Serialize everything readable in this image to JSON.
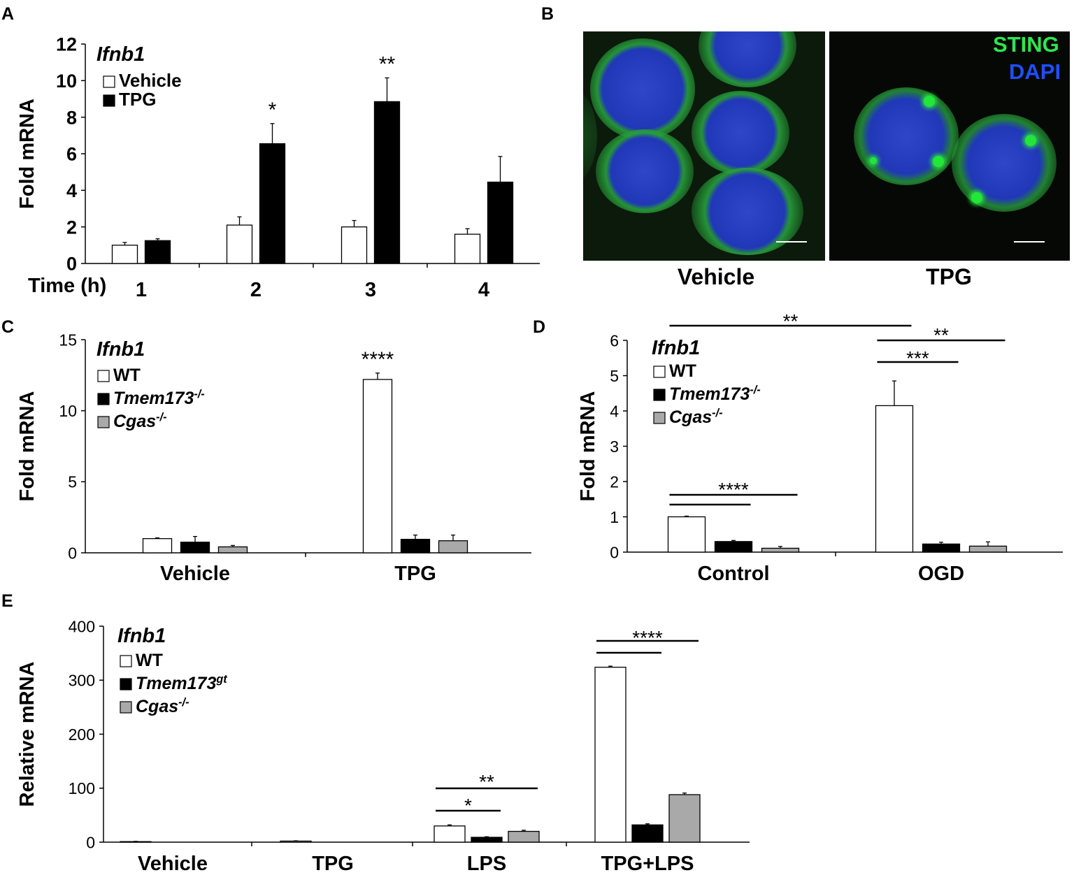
{
  "panels": {
    "A": "A",
    "B": "B",
    "C": "C",
    "D": "D",
    "E": "E"
  },
  "colors": {
    "wt": "#ffffff",
    "tpg": "#000000",
    "ko": "#000000",
    "cgas": "#a9a9a9",
    "sting": "#2ee64a",
    "dapi": "#1f4fff"
  },
  "chart_data": [
    {
      "panel": "A",
      "type": "bar",
      "title": "Ifnb1",
      "xlabel": "Time (h)",
      "ylabel": "Fold mRNA",
      "ylim": [
        0,
        12
      ],
      "yticks": [
        "0",
        "2",
        "4",
        "6",
        "8",
        "10",
        "12"
      ],
      "categories": [
        "1",
        "2",
        "3",
        "4"
      ],
      "series": [
        {
          "name": "Vehicle",
          "values": [
            1.0,
            2.1,
            2.0,
            1.6
          ],
          "errors": [
            0.15,
            0.45,
            0.35,
            0.3
          ],
          "color": "#ffffff"
        },
        {
          "name": "TPG",
          "values": [
            1.25,
            6.55,
            8.85,
            4.45
          ],
          "errors": [
            0.1,
            1.1,
            1.3,
            1.4
          ],
          "color": "#000000"
        }
      ],
      "annotations": [
        {
          "category": "2",
          "text": "*"
        },
        {
          "category": "3",
          "text": "**"
        }
      ]
    },
    {
      "panel": "C",
      "type": "bar",
      "title": "Ifnb1",
      "ylabel": "Fold mRNA",
      "ylim": [
        0,
        15
      ],
      "yticks": [
        "0",
        "5",
        "10",
        "15"
      ],
      "categories": [
        "Vehicle",
        "TPG"
      ],
      "series": [
        {
          "name": "WT",
          "values": [
            1.0,
            12.2
          ],
          "errors": [
            0.05,
            0.45
          ],
          "color": "#ffffff"
        },
        {
          "name": "Tmem173",
          "sup": "-/-",
          "values": [
            0.75,
            0.95
          ],
          "errors": [
            0.4,
            0.3
          ],
          "color": "#000000"
        },
        {
          "name": "Cgas",
          "sup": "-/-",
          "values": [
            0.42,
            0.85
          ],
          "errors": [
            0.1,
            0.4
          ],
          "color": "#a9a9a9"
        }
      ],
      "annotations": [
        {
          "category": "TPG",
          "text": "****"
        }
      ]
    },
    {
      "panel": "D",
      "type": "bar",
      "title": "Ifnb1",
      "ylabel": "Fold mRNA",
      "ylim": [
        0,
        6
      ],
      "yticks": [
        "0",
        "1",
        "2",
        "3",
        "4",
        "5",
        "6"
      ],
      "categories": [
        "Control",
        "OGD"
      ],
      "series": [
        {
          "name": "WT",
          "values": [
            1.0,
            4.15
          ],
          "errors": [
            0.02,
            0.7
          ],
          "color": "#ffffff"
        },
        {
          "name": "Tmem173",
          "sup": "-/-",
          "values": [
            0.3,
            0.23
          ],
          "errors": [
            0.03,
            0.05
          ],
          "color": "#000000"
        },
        {
          "name": "Cgas",
          "sup": "-/-",
          "values": [
            0.11,
            0.17
          ],
          "errors": [
            0.05,
            0.12
          ],
          "color": "#a9a9a9"
        }
      ],
      "annotations": [
        {
          "text": "****",
          "from": "Control WT",
          "to": "Control Cgas"
        },
        {
          "text": "***",
          "from": "OGD WT",
          "to": "OGD Tmem173"
        },
        {
          "text": "**",
          "from": "OGD WT",
          "to": "OGD Cgas"
        },
        {
          "text": "**",
          "from": "Control WT",
          "to": "OGD WT"
        }
      ]
    },
    {
      "panel": "E",
      "type": "bar",
      "title": "Ifnb1",
      "ylabel": "Relative mRNA",
      "ylim": [
        0,
        400
      ],
      "yticks": [
        "0",
        "100",
        "200",
        "300",
        "400"
      ],
      "categories": [
        "Vehicle",
        "TPG",
        "LPS",
        "TPG+LPS"
      ],
      "series": [
        {
          "name": "WT",
          "values": [
            1,
            2,
            30,
            324
          ],
          "errors": [
            0.5,
            0.5,
            2,
            2
          ],
          "color": "#ffffff"
        },
        {
          "name": "Tmem173",
          "sup": "gt",
          "values": [
            0,
            0,
            9,
            32
          ],
          "errors": [
            0,
            0,
            1,
            2
          ],
          "color": "#000000"
        },
        {
          "name": "Cgas",
          "sup": "-/-",
          "values": [
            0,
            0,
            20,
            88
          ],
          "errors": [
            0,
            0,
            2,
            3
          ],
          "color": "#a9a9a9"
        }
      ],
      "annotations": [
        {
          "text": "*",
          "from": "LPS WT",
          "to": "LPS Tmem173"
        },
        {
          "text": "**",
          "from": "LPS WT",
          "to": "LPS Cgas"
        },
        {
          "text": "****",
          "from": "TPG+LPS WT",
          "to": "TPG+LPS Cgas"
        }
      ]
    }
  ],
  "microscopy": {
    "stains": [
      "STING",
      "DAPI"
    ],
    "panels": [
      {
        "label": "Vehicle"
      },
      {
        "label": "TPG"
      }
    ]
  }
}
